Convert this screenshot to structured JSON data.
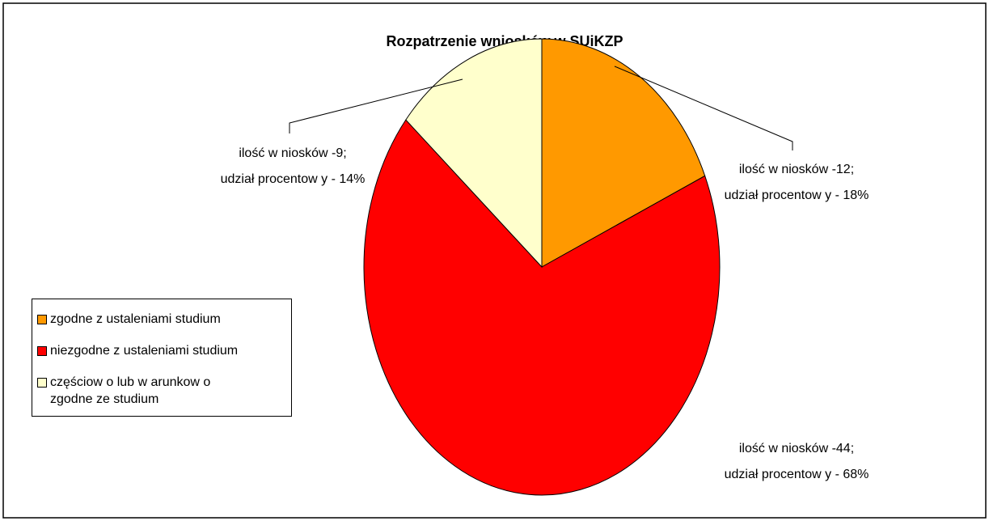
{
  "chart_data": {
    "type": "pie",
    "title": "Rozpatrzenie wniosków w SUiKZP",
    "categories": [
      "zgodne z ustaleniami studium",
      "niezgodne z ustaleniami studium",
      "częściow o lub w arunkow o zgodne ze studium"
    ],
    "values": [
      12,
      44,
      9
    ],
    "value_labels": [
      [
        "ilość w niosków -12;",
        "udział procentow y - 18%"
      ],
      [
        "ilość w niosków -44;",
        "udział procentow y - 68%"
      ],
      [
        "ilość w niosków -9;",
        "udział procentow y - 14%"
      ]
    ],
    "colors": [
      "#ff9900",
      "#ff0000",
      "#ffffcc"
    ],
    "legend": "left"
  }
}
